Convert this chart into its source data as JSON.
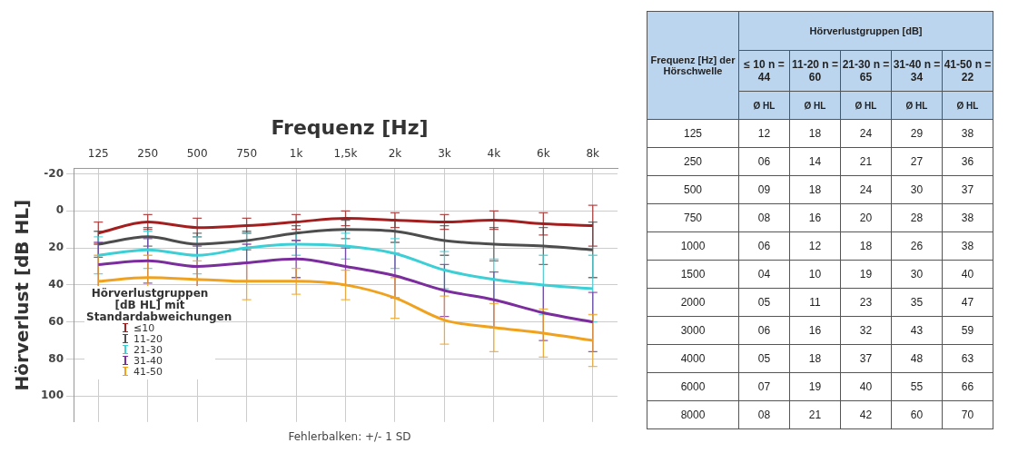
{
  "chart_data": [
    {
      "type": "line",
      "xlabel": "Frequenz [Hz]",
      "ylabel": "Hörverlust [dB HL]",
      "legend_title": "Hörverlustgruppen [dB HL] mit Standardabweichungen",
      "categories": [
        "125",
        "250",
        "500",
        "750",
        "1k",
        "1,5k",
        "2k",
        "3k",
        "4k",
        "6k",
        "8k"
      ],
      "ylim": [
        114,
        -23
      ],
      "yticks": [
        -20,
        0,
        20,
        40,
        60,
        80,
        100
      ],
      "grid": true,
      "legend": "bottom left",
      "line_style": "solid",
      "series": [
        {
          "name": "≤10",
          "color": "#a31f1f",
          "values": [
            12,
            6,
            9,
            8,
            6,
            4,
            5,
            6,
            5,
            7,
            8
          ],
          "errors": [
            6,
            4,
            5,
            4,
            4,
            4,
            4,
            4,
            5,
            6,
            11
          ]
        },
        {
          "name": "11-20",
          "color": "#4d4d4d",
          "values": [
            18,
            14,
            18,
            16,
            12,
            10,
            11,
            16,
            18,
            19,
            21
          ],
          "errors": [
            7,
            5,
            6,
            5,
            4,
            5,
            6,
            8,
            9,
            10,
            15
          ]
        },
        {
          "name": "21-30",
          "color": "#3ccfd6",
          "values": [
            24,
            21,
            24,
            20,
            18,
            19,
            23,
            32,
            37,
            40,
            42
          ],
          "errors": [
            10,
            10,
            10,
            8,
            6,
            7,
            8,
            10,
            11,
            16,
            18
          ]
        },
        {
          "name": "31-40",
          "color": "#7b2d9e",
          "values": [
            29,
            27,
            30,
            28,
            26,
            30,
            35,
            43,
            48,
            55,
            60
          ],
          "errors": [
            12,
            12,
            11,
            10,
            10,
            10,
            12,
            14,
            15,
            15,
            16
          ]
        },
        {
          "name": "41-50",
          "color": "#f0a21e",
          "values": [
            38,
            36,
            37,
            38,
            38,
            40,
            47,
            59,
            63,
            66,
            70
          ],
          "errors": [
            14,
            12,
            10,
            10,
            7,
            8,
            11,
            13,
            13,
            13,
            14
          ]
        }
      ],
      "annotations": [
        "Fehlerbalken: +/- 1 SD"
      ]
    },
    {
      "type": "heatmap",
      "title": "Hörverlustgruppen [dB]",
      "ylabel": "Frequenz [Hz] der Hörschwelle",
      "xlabel": "Ø HL",
      "categories": [
        "≤ 10 n = 44",
        "11-20 n = 60",
        "21-30 n = 65",
        "31-40 n = 34",
        "41-50 n = 22"
      ],
      "y_categories": [
        "125",
        "250",
        "500",
        "750",
        "1000",
        "1500",
        "2000",
        "3000",
        "4000",
        "6000",
        "8000"
      ],
      "cells": [
        [
          12,
          18,
          24,
          29,
          38
        ],
        [
          6,
          14,
          21,
          27,
          36
        ],
        [
          9,
          18,
          24,
          30,
          37
        ],
        [
          8,
          16,
          20,
          28,
          38
        ],
        [
          6,
          12,
          18,
          26,
          38
        ],
        [
          4,
          10,
          19,
          30,
          40
        ],
        [
          5,
          11,
          23,
          35,
          47
        ],
        [
          6,
          16,
          32,
          43,
          59
        ],
        [
          5,
          18,
          37,
          48,
          63
        ],
        [
          7,
          19,
          40,
          55,
          66
        ],
        [
          8,
          21,
          42,
          60,
          70
        ]
      ],
      "cell_labels": [
        [
          "12",
          "18",
          "24",
          "29",
          "38"
        ],
        [
          "06",
          "14",
          "21",
          "27",
          "36"
        ],
        [
          "09",
          "18",
          "24",
          "30",
          "37"
        ],
        [
          "08",
          "16",
          "20",
          "28",
          "38"
        ],
        [
          "06",
          "12",
          "18",
          "26",
          "38"
        ],
        [
          "04",
          "10",
          "19",
          "30",
          "40"
        ],
        [
          "05",
          "11",
          "23",
          "35",
          "47"
        ],
        [
          "06",
          "16",
          "32",
          "43",
          "59"
        ],
        [
          "05",
          "18",
          "37",
          "48",
          "63"
        ],
        [
          "07",
          "19",
          "40",
          "55",
          "66"
        ],
        [
          "08",
          "21",
          "42",
          "60",
          "70"
        ]
      ]
    }
  ]
}
